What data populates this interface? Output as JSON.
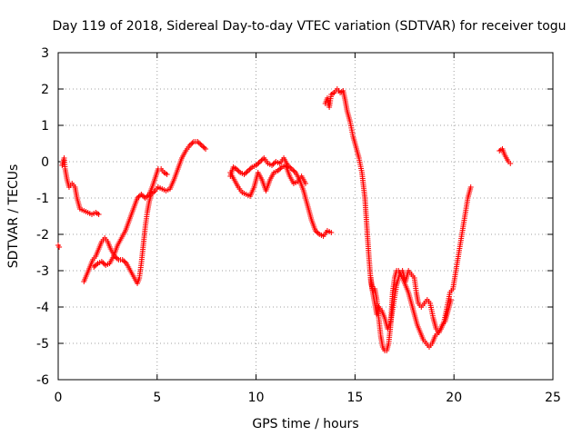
{
  "chart_data": {
    "type": "scatter",
    "title": "Day 119 of 2018, Sidereal Day-to-day VTEC variation (SDTVAR) for receiver togu",
    "xlabel": "GPS time / hours",
    "ylabel": "SDTVAR / TECUs",
    "xlim": [
      0,
      25
    ],
    "ylim": [
      -6,
      3
    ],
    "xticks": [
      0,
      5,
      10,
      15,
      20,
      25
    ],
    "yticks": [
      -6,
      -5,
      -4,
      -3,
      -2,
      -1,
      0,
      1,
      2,
      3
    ],
    "grid": true,
    "marker": "plus",
    "colors": {
      "series": "#ff0000",
      "grid": "#a0a0a0",
      "axis": "#000000"
    },
    "series": [
      {
        "name": "seg-start",
        "points": [
          [
            0.0,
            -2.3
          ],
          [
            0.05,
            -2.35
          ]
        ]
      },
      {
        "name": "seg-1",
        "points": [
          [
            0.2,
            -0.1
          ],
          [
            0.3,
            0.1
          ],
          [
            0.35,
            -0.2
          ],
          [
            0.45,
            -0.5
          ],
          [
            0.55,
            -0.7
          ],
          [
            0.7,
            -0.6
          ],
          [
            0.85,
            -0.7
          ],
          [
            0.95,
            -1.0
          ],
          [
            1.1,
            -1.3
          ],
          [
            1.3,
            -1.35
          ],
          [
            1.5,
            -1.4
          ],
          [
            1.7,
            -1.45
          ],
          [
            1.9,
            -1.4
          ],
          [
            2.05,
            -1.45
          ]
        ]
      },
      {
        "name": "seg-2",
        "points": [
          [
            1.3,
            -3.3
          ],
          [
            1.45,
            -3.1
          ],
          [
            1.6,
            -2.9
          ],
          [
            1.75,
            -2.7
          ],
          [
            1.9,
            -2.6
          ],
          [
            2.05,
            -2.4
          ],
          [
            2.2,
            -2.2
          ],
          [
            2.35,
            -2.1
          ],
          [
            2.5,
            -2.2
          ],
          [
            2.65,
            -2.4
          ],
          [
            2.85,
            -2.6
          ],
          [
            3.05,
            -2.7
          ],
          [
            3.25,
            -2.7
          ],
          [
            3.45,
            -2.8
          ],
          [
            3.65,
            -3.0
          ],
          [
            3.85,
            -3.2
          ],
          [
            4.0,
            -3.35
          ],
          [
            4.1,
            -3.2
          ],
          [
            4.2,
            -2.8
          ],
          [
            4.3,
            -2.3
          ],
          [
            4.4,
            -1.8
          ],
          [
            4.5,
            -1.4
          ],
          [
            4.6,
            -1.1
          ],
          [
            4.7,
            -0.9
          ],
          [
            4.9,
            -0.8
          ],
          [
            5.05,
            -0.7
          ],
          [
            5.25,
            -0.75
          ],
          [
            5.45,
            -0.8
          ],
          [
            5.65,
            -0.75
          ],
          [
            5.85,
            -0.5
          ],
          [
            6.05,
            -0.2
          ],
          [
            6.25,
            0.1
          ],
          [
            6.45,
            0.3
          ],
          [
            6.65,
            0.45
          ],
          [
            6.85,
            0.55
          ],
          [
            7.05,
            0.55
          ],
          [
            7.25,
            0.45
          ],
          [
            7.45,
            0.35
          ]
        ]
      },
      {
        "name": "seg-3",
        "points": [
          [
            1.8,
            -2.9
          ],
          [
            2.0,
            -2.8
          ],
          [
            2.2,
            -2.75
          ],
          [
            2.4,
            -2.85
          ],
          [
            2.6,
            -2.8
          ],
          [
            2.8,
            -2.6
          ],
          [
            3.0,
            -2.3
          ],
          [
            3.2,
            -2.1
          ],
          [
            3.4,
            -1.9
          ],
          [
            3.6,
            -1.6
          ],
          [
            3.8,
            -1.3
          ],
          [
            4.0,
            -1.0
          ],
          [
            4.2,
            -0.9
          ],
          [
            4.4,
            -1.0
          ],
          [
            4.6,
            -0.9
          ],
          [
            4.75,
            -0.7
          ],
          [
            4.9,
            -0.45
          ],
          [
            5.05,
            -0.2
          ],
          [
            5.2,
            -0.2
          ],
          [
            5.35,
            -0.3
          ],
          [
            5.5,
            -0.35
          ]
        ]
      },
      {
        "name": "seg-4a",
        "points": [
          [
            8.7,
            -0.4
          ],
          [
            8.85,
            -0.15
          ],
          [
            9.0,
            -0.2
          ],
          [
            9.2,
            -0.3
          ],
          [
            9.4,
            -0.35
          ],
          [
            9.6,
            -0.25
          ],
          [
            9.8,
            -0.15
          ],
          [
            10.0,
            -0.1
          ],
          [
            10.2,
            0.0
          ],
          [
            10.4,
            0.1
          ],
          [
            10.6,
            -0.05
          ],
          [
            10.8,
            -0.1
          ],
          [
            11.0,
            0.0
          ],
          [
            11.2,
            -0.05
          ],
          [
            11.4,
            0.1
          ],
          [
            11.6,
            -0.1
          ],
          [
            11.8,
            -0.2
          ],
          [
            12.0,
            -0.3
          ],
          [
            12.2,
            -0.5
          ],
          [
            12.4,
            -0.8
          ],
          [
            12.6,
            -1.2
          ],
          [
            12.8,
            -1.6
          ],
          [
            13.0,
            -1.9
          ],
          [
            13.2,
            -2.0
          ],
          [
            13.4,
            -2.05
          ],
          [
            13.6,
            -1.9
          ],
          [
            13.8,
            -1.95
          ]
        ]
      },
      {
        "name": "seg-4b",
        "points": [
          [
            8.7,
            -0.3
          ],
          [
            8.9,
            -0.5
          ],
          [
            9.1,
            -0.7
          ],
          [
            9.3,
            -0.85
          ],
          [
            9.5,
            -0.9
          ],
          [
            9.7,
            -0.95
          ],
          [
            9.9,
            -0.7
          ],
          [
            10.1,
            -0.3
          ],
          [
            10.3,
            -0.5
          ],
          [
            10.5,
            -0.8
          ],
          [
            10.7,
            -0.5
          ],
          [
            10.9,
            -0.3
          ],
          [
            11.1,
            -0.25
          ],
          [
            11.3,
            -0.15
          ],
          [
            11.5,
            -0.1
          ],
          [
            11.7,
            -0.4
          ],
          [
            11.9,
            -0.6
          ],
          [
            12.1,
            -0.55
          ],
          [
            12.3,
            -0.4
          ],
          [
            12.5,
            -0.6
          ]
        ]
      },
      {
        "name": "seg-5",
        "points": [
          [
            13.5,
            1.6
          ],
          [
            13.6,
            1.75
          ],
          [
            13.7,
            1.5
          ],
          [
            13.8,
            1.85
          ],
          [
            13.95,
            1.9
          ],
          [
            14.1,
            2.0
          ],
          [
            14.25,
            1.9
          ],
          [
            14.4,
            1.95
          ],
          [
            14.5,
            1.7
          ],
          [
            14.6,
            1.4
          ],
          [
            14.75,
            1.1
          ],
          [
            14.9,
            0.7
          ],
          [
            15.05,
            0.4
          ],
          [
            15.2,
            0.1
          ],
          [
            15.35,
            -0.3
          ],
          [
            15.5,
            -1.0
          ],
          [
            15.6,
            -1.8
          ],
          [
            15.7,
            -2.6
          ],
          [
            15.8,
            -3.3
          ],
          [
            15.9,
            -3.6
          ],
          [
            16.0,
            -3.5
          ],
          [
            16.1,
            -3.8
          ],
          [
            16.2,
            -4.3
          ],
          [
            16.3,
            -4.8
          ],
          [
            16.4,
            -5.1
          ],
          [
            16.5,
            -5.2
          ],
          [
            16.6,
            -5.2
          ],
          [
            16.7,
            -5.0
          ],
          [
            16.8,
            -4.5
          ],
          [
            16.9,
            -3.6
          ],
          [
            17.0,
            -3.2
          ],
          [
            17.1,
            -3.0
          ],
          [
            17.2,
            -3.0
          ],
          [
            17.3,
            -3.1
          ],
          [
            17.4,
            -3.2
          ],
          [
            17.55,
            -3.4
          ],
          [
            17.7,
            -3.6
          ],
          [
            17.85,
            -3.9
          ],
          [
            18.0,
            -4.2
          ],
          [
            18.15,
            -4.5
          ],
          [
            18.3,
            -4.7
          ],
          [
            18.45,
            -4.9
          ],
          [
            18.6,
            -5.0
          ],
          [
            18.75,
            -5.1
          ],
          [
            18.9,
            -5.0
          ],
          [
            19.05,
            -4.8
          ],
          [
            19.2,
            -4.7
          ],
          [
            19.35,
            -4.6
          ],
          [
            19.5,
            -4.4
          ],
          [
            19.65,
            -4.0
          ],
          [
            19.8,
            -3.6
          ],
          [
            19.95,
            -3.5
          ],
          [
            20.1,
            -3.0
          ],
          [
            20.25,
            -2.5
          ],
          [
            20.4,
            -2.0
          ],
          [
            20.55,
            -1.5
          ],
          [
            20.7,
            -1.0
          ],
          [
            20.85,
            -0.7
          ]
        ]
      },
      {
        "name": "seg-6",
        "points": [
          [
            15.8,
            -3.2
          ],
          [
            15.9,
            -3.6
          ],
          [
            16.0,
            -3.9
          ],
          [
            16.1,
            -4.2
          ],
          [
            16.2,
            -4.0
          ],
          [
            16.35,
            -4.1
          ],
          [
            16.5,
            -4.3
          ],
          [
            16.65,
            -4.6
          ],
          [
            16.8,
            -4.4
          ],
          [
            16.95,
            -3.9
          ],
          [
            17.1,
            -3.4
          ],
          [
            17.25,
            -3.1
          ],
          [
            17.4,
            -3.0
          ],
          [
            17.55,
            -3.3
          ],
          [
            17.7,
            -3.0
          ],
          [
            17.85,
            -3.1
          ],
          [
            18.0,
            -3.2
          ],
          [
            18.1,
            -3.6
          ],
          [
            18.2,
            -3.9
          ],
          [
            18.35,
            -4.0
          ],
          [
            18.5,
            -3.9
          ],
          [
            18.65,
            -3.8
          ],
          [
            18.8,
            -3.9
          ],
          [
            18.95,
            -4.3
          ],
          [
            19.1,
            -4.6
          ],
          [
            19.25,
            -4.7
          ],
          [
            19.4,
            -4.5
          ],
          [
            19.55,
            -4.4
          ],
          [
            19.7,
            -4.1
          ],
          [
            19.85,
            -3.8
          ]
        ]
      },
      {
        "name": "seg-end",
        "points": [
          [
            22.3,
            0.3
          ],
          [
            22.45,
            0.35
          ],
          [
            22.55,
            0.2
          ],
          [
            22.65,
            0.1
          ],
          [
            22.75,
            0.0
          ],
          [
            22.85,
            -0.05
          ]
        ]
      }
    ]
  }
}
